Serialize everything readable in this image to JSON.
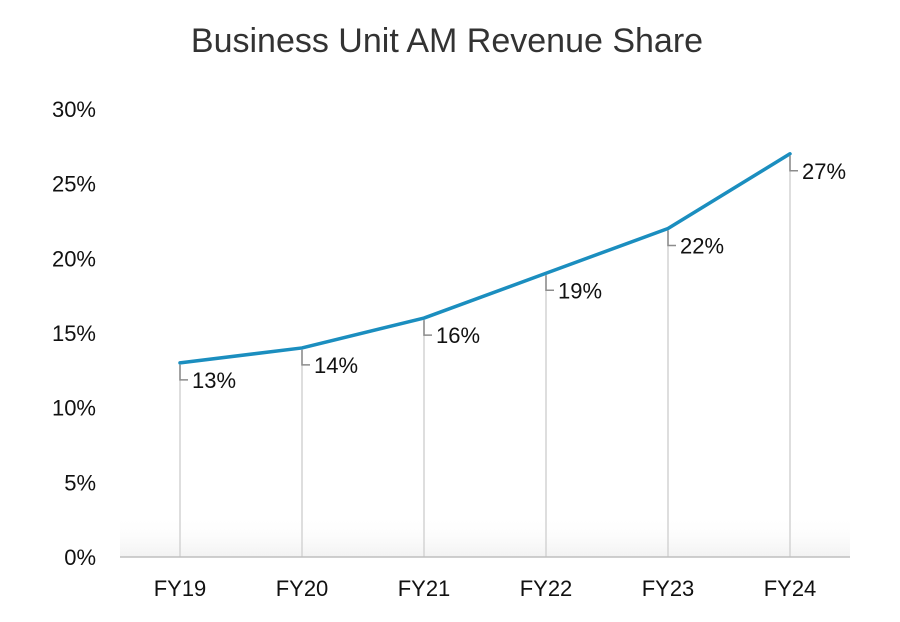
{
  "chart_data": {
    "type": "line",
    "title": "Business Unit AM Revenue Share",
    "categories": [
      "FY19",
      "FY20",
      "FY21",
      "FY22",
      "FY23",
      "FY24"
    ],
    "series": [
      {
        "values": [
          13,
          14,
          16,
          19,
          22,
          27
        ],
        "color": "#1b8ebf"
      }
    ],
    "data_labels": [
      "13%",
      "14%",
      "16%",
      "19%",
      "22%",
      "27%"
    ],
    "y_ticks": [
      0,
      5,
      10,
      15,
      20,
      25,
      30
    ],
    "y_tick_labels": [
      "0%",
      "5%",
      "10%",
      "15%",
      "20%",
      "25%",
      "30%"
    ],
    "ylim": [
      0,
      30
    ],
    "xlabel": "",
    "ylabel": "",
    "grid": false,
    "drop_lines": true,
    "colors": {
      "line": "#1b8ebf",
      "drop_line": "#d4d4d4",
      "leader": "#8c8c8c",
      "axis": "#bfbfbf"
    }
  }
}
